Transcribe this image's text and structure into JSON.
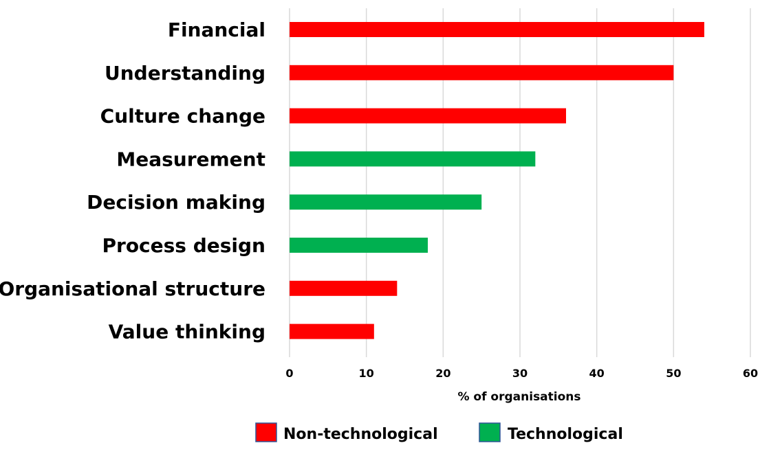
{
  "chart_data": {
    "type": "bar",
    "orientation": "horizontal",
    "categories": [
      "Financial",
      "Understanding",
      "Culture change",
      "Measurement",
      "Decision making",
      "Process design",
      "Organisational structure",
      "Value thinking"
    ],
    "values": [
      54,
      50,
      36,
      32,
      25,
      18,
      14,
      11
    ],
    "groups": [
      "Non-technological",
      "Non-technological",
      "Non-technological",
      "Technological",
      "Technological",
      "Technological",
      "Non-technological",
      "Non-technological"
    ],
    "xlabel": "% of organisations",
    "ylabel": "",
    "xlim": [
      0,
      60
    ],
    "xticks": [
      0,
      10,
      20,
      30,
      40,
      50,
      60
    ],
    "grid": "vertical",
    "legend": {
      "placement": "bottom",
      "entries": [
        {
          "name": "Non-technological",
          "color": "#ff0000"
        },
        {
          "name": "Technological",
          "color": "#00b050"
        }
      ]
    }
  }
}
